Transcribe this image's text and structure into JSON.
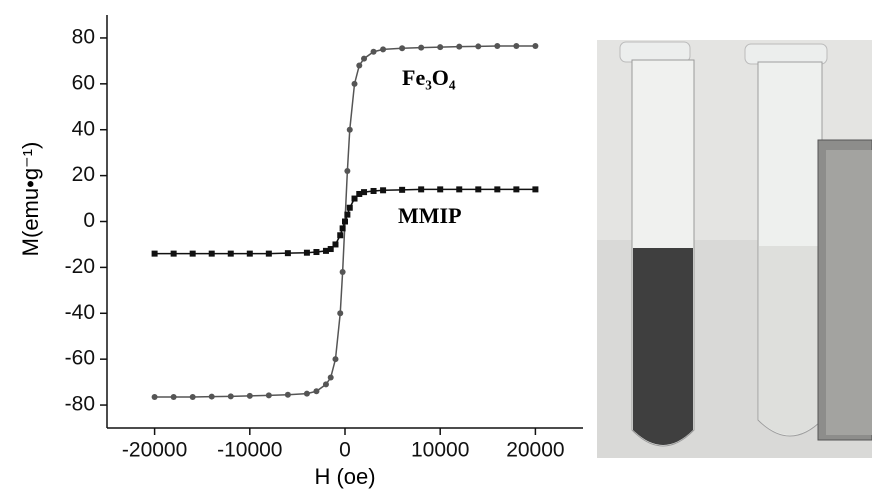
{
  "chart_data": {
    "type": "line",
    "x_label": "H (oe)",
    "y_label": "M(emu•g⁻¹)",
    "x": [
      -20000,
      -18000,
      -16000,
      -14000,
      -12000,
      -10000,
      -8000,
      -6000,
      -4000,
      -3000,
      -2000,
      -1500,
      -1000,
      -500,
      -250,
      0,
      250,
      500,
      1000,
      1500,
      2000,
      3000,
      4000,
      6000,
      8000,
      10000,
      12000,
      14000,
      16000,
      18000,
      20000
    ],
    "series": [
      {
        "name": "Fe₃O₄",
        "color": "#555555",
        "marker": "circle",
        "values": [
          -76.5,
          -76.5,
          -76.5,
          -76.3,
          -76.2,
          -76,
          -75.8,
          -75.5,
          -75,
          -74,
          -71,
          -68,
          -60,
          -40,
          -22,
          0,
          22,
          40,
          60,
          68,
          71,
          74,
          75,
          75.5,
          75.8,
          76,
          76.2,
          76.3,
          76.5,
          76.5,
          76.5
        ]
      },
      {
        "name": "MMIP",
        "color": "#111111",
        "marker": "square",
        "values": [
          -14,
          -14,
          -14,
          -14,
          -14,
          -14,
          -14,
          -13.8,
          -13.6,
          -13.3,
          -12.8,
          -12,
          -10,
          -6,
          -3,
          0,
          3,
          6,
          10,
          12,
          12.8,
          13.3,
          13.6,
          13.8,
          14,
          14,
          14,
          14,
          14,
          14,
          14
        ]
      }
    ],
    "xlim": [
      -25000,
      25000
    ],
    "ylim": [
      -90,
      90
    ],
    "xticks": [
      -20000,
      -10000,
      0,
      10000,
      20000
    ],
    "yticks": [
      -80,
      -60,
      -40,
      -20,
      0,
      20,
      40,
      60,
      80
    ]
  }
}
